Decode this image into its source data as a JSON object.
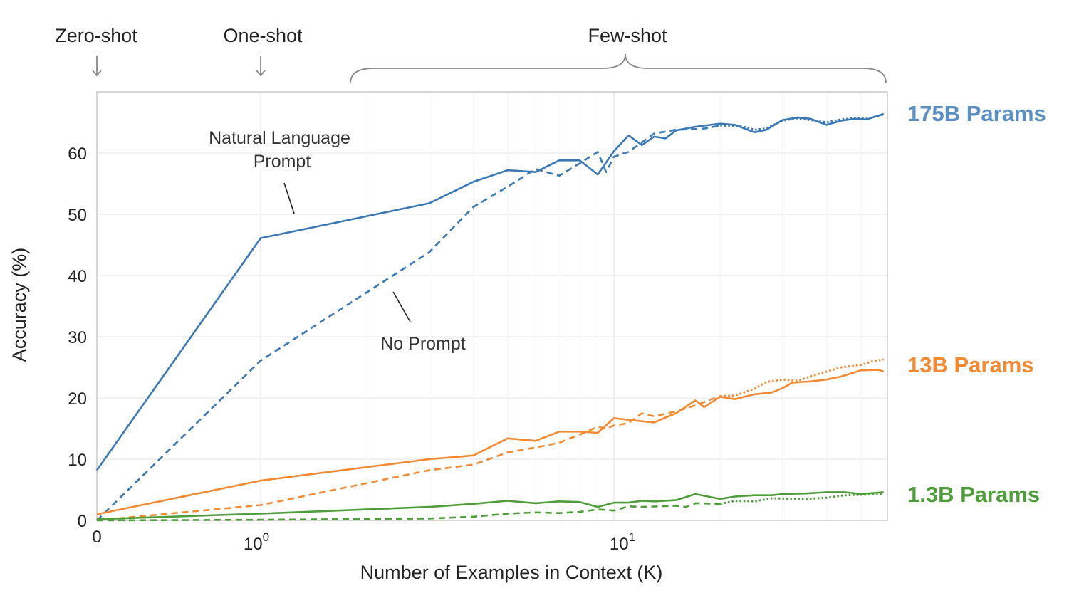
{
  "chart_data": {
    "type": "line",
    "title": "",
    "xlabel": "Number of Examples in Context  (K)",
    "ylabel": "Accuracy (%)",
    "x_scale": "log (with 0 shown at left edge)",
    "xlim": [
      0,
      60
    ],
    "ylim": [
      0,
      70
    ],
    "x_ticks": [
      {
        "value": 0,
        "label": "0"
      },
      {
        "value": 1,
        "base": "10",
        "exp": "0"
      },
      {
        "value": 10,
        "base": "10",
        "exp": "1"
      }
    ],
    "y_ticks": [
      0,
      10,
      20,
      30,
      40,
      50,
      60
    ],
    "grid": true,
    "regions": {
      "zero_shot": "Zero-shot",
      "one_shot": "One-shot",
      "few_shot": "Few-shot"
    },
    "annotations": {
      "natural_language_prompt": [
        "Natural Language",
        "Prompt"
      ],
      "no_prompt": "No Prompt"
    },
    "models": [
      {
        "label": "175B Params",
        "color": "#3b78b4",
        "label_color": "#5b8fc2"
      },
      {
        "label": "13B Params",
        "color": "#f28a33",
        "label_color": "#f28a33"
      },
      {
        "label": "1.3B Params",
        "color": "#4e9d3a",
        "label_color": "#4e9d3a"
      }
    ],
    "series": [
      {
        "model": "175B Params",
        "style": "solid",
        "color": "#3b78b4",
        "x": [
          0,
          1,
          3,
          4,
          5,
          6,
          7,
          8,
          9,
          10,
          11,
          12,
          13,
          14,
          15,
          17,
          20,
          22,
          25,
          27,
          30,
          33,
          36,
          40,
          44,
          48,
          52,
          58
        ],
        "y": [
          8.2,
          46.1,
          51.8,
          55.3,
          57.2,
          56.9,
          58.8,
          58.8,
          56.5,
          60.3,
          62.9,
          61.3,
          62.7,
          62.4,
          63.7,
          64.3,
          64.8,
          64.6,
          63.4,
          63.8,
          65.4,
          65.8,
          65.6,
          64.6,
          65.3,
          65.6,
          65.5,
          66.4
        ]
      },
      {
        "model": "175B Params",
        "style": "dashed",
        "color": "#3b78b4",
        "x": [
          0,
          1,
          3,
          4,
          5,
          6,
          7,
          8,
          9,
          9.5,
          10,
          11,
          13,
          15,
          18,
          20
        ],
        "y": [
          0,
          26.1,
          43.8,
          51.2,
          54.5,
          57.4,
          56.3,
          58.3,
          60.2,
          56.9,
          59.4,
          60.2,
          63.2,
          63.8,
          64.0,
          64.5
        ]
      },
      {
        "model": "175B Params",
        "style": "dotted",
        "color": "#3b78b4",
        "x": [
          20,
          23,
          25,
          27,
          30,
          33,
          36,
          40,
          44,
          48,
          52,
          58
        ],
        "y": [
          64.5,
          64.4,
          63.8,
          64.0,
          65.3,
          65.7,
          65.4,
          65.0,
          65.5,
          65.7,
          65.6,
          66.3
        ]
      },
      {
        "model": "13B Params",
        "style": "solid",
        "color": "#f28a33",
        "x": [
          0,
          1,
          3,
          4,
          5,
          6,
          7,
          8,
          9,
          10,
          12,
          13,
          14,
          15,
          17,
          18,
          20,
          22,
          25,
          28,
          30,
          32,
          36,
          40,
          44,
          50,
          56,
          58
        ],
        "y": [
          1.0,
          6.5,
          10.0,
          10.6,
          13.4,
          13.0,
          14.5,
          14.5,
          14.3,
          16.7,
          16.2,
          16.0,
          16.8,
          17.5,
          19.6,
          18.5,
          20.2,
          19.8,
          20.6,
          20.9,
          21.6,
          22.5,
          22.7,
          23.0,
          23.5,
          24.5,
          24.6,
          24.3
        ]
      },
      {
        "model": "13B Params",
        "style": "dashed",
        "color": "#f28a33",
        "x": [
          0,
          1,
          3,
          4,
          5,
          6,
          7,
          8,
          9,
          9.5,
          10,
          11,
          12,
          13,
          15,
          17,
          20
        ],
        "y": [
          0,
          2.5,
          8.2,
          9.1,
          11.1,
          11.9,
          12.7,
          14.0,
          15.3,
          15.0,
          15.5,
          15.9,
          17.5,
          17.0,
          17.8,
          18.8,
          20.3
        ]
      },
      {
        "model": "13B Params",
        "style": "dotted",
        "color": "#f28a33",
        "x": [
          20,
          22,
          25,
          27,
          30,
          33,
          36,
          40,
          44,
          50,
          54,
          58
        ],
        "y": [
          20.3,
          20.4,
          21.5,
          22.6,
          23.0,
          22.8,
          23.5,
          24.3,
          25.0,
          25.4,
          26.0,
          26.3
        ]
      },
      {
        "model": "1.3B Params",
        "style": "solid",
        "color": "#4e9d3a",
        "x": [
          0,
          1,
          3,
          4,
          5,
          6,
          7,
          8,
          9,
          10,
          11,
          12,
          13,
          15,
          17,
          20,
          22,
          25,
          28,
          30,
          35,
          40,
          45,
          50,
          58
        ],
        "y": [
          0.2,
          1.1,
          2.2,
          2.7,
          3.2,
          2.8,
          3.1,
          3.0,
          2.2,
          2.9,
          2.9,
          3.2,
          3.1,
          3.3,
          4.3,
          3.5,
          3.9,
          4.1,
          4.1,
          4.3,
          4.4,
          4.6,
          4.6,
          4.3,
          4.6
        ]
      },
      {
        "model": "1.3B Params",
        "style": "dashed",
        "color": "#4e9d3a",
        "x": [
          0,
          1,
          3,
          4,
          5,
          6,
          7,
          8,
          9,
          10,
          11,
          12,
          15,
          16,
          17,
          20
        ],
        "y": [
          0,
          0.1,
          0.3,
          0.6,
          1.1,
          1.3,
          1.2,
          1.4,
          1.8,
          1.6,
          2.3,
          2.2,
          2.4,
          2.2,
          2.8,
          2.7
        ]
      },
      {
        "model": "1.3B Params",
        "style": "dotted",
        "color": "#4e9d3a",
        "x": [
          20,
          22,
          25,
          28,
          35,
          40,
          45,
          58
        ],
        "y": [
          2.7,
          3.2,
          3.1,
          3.6,
          3.5,
          3.7,
          4.1,
          4.3
        ]
      }
    ]
  }
}
